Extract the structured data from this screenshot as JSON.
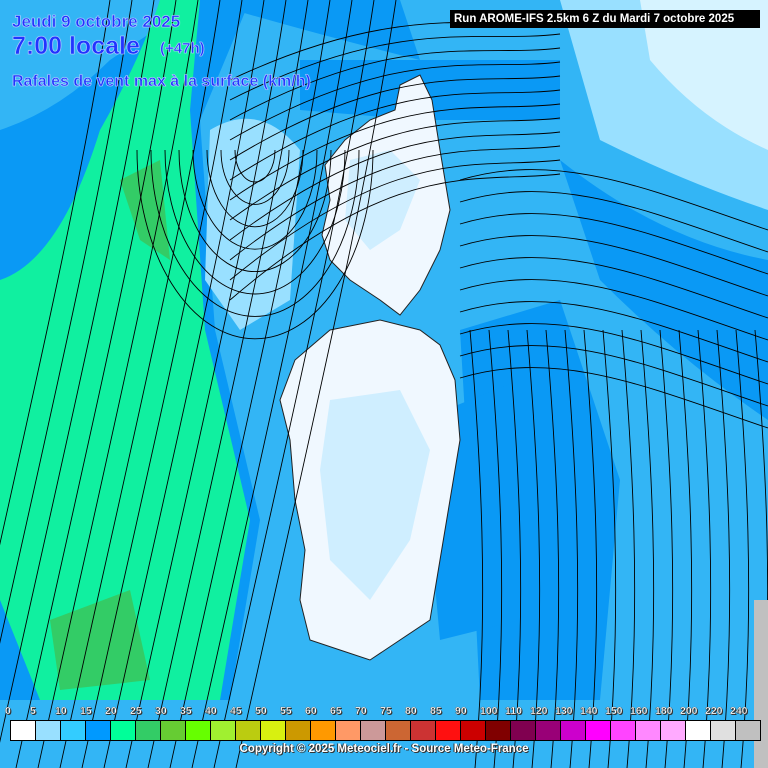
{
  "header": {
    "date": "Jeudi 9 octobre 2025",
    "hour": "7:00 locale",
    "lead_time": "(+47h)",
    "parameter": "Rafales de vent max à la surface (km/h)",
    "run": "Run AROME-IFS 2.5km 6 Z du Mardi 7 octobre 2025"
  },
  "legend": {
    "labels": [
      "0",
      "5",
      "10",
      "15",
      "20",
      "25",
      "30",
      "35",
      "40",
      "45",
      "50",
      "55",
      "60",
      "65",
      "70",
      "75",
      "80",
      "85",
      "90",
      "100",
      "110",
      "120",
      "130",
      "140",
      "150",
      "160",
      "180",
      "200",
      "220",
      "240"
    ],
    "colors": [
      "#ffffff",
      "#99e0ff",
      "#33ccff",
      "#0099ff",
      "#00ff99",
      "#33cc66",
      "#66cc33",
      "#66ff00",
      "#a0f030",
      "#bbcc10",
      "#d8f010",
      "#cc9900",
      "#ff9900",
      "#ff9966",
      "#cc9999",
      "#cc6633",
      "#cc3333",
      "#ff1010",
      "#cc0000",
      "#800000",
      "#800050",
      "#990077",
      "#cc00cc",
      "#ff00ff",
      "#ff44ff",
      "#ff88ff",
      "#ffaaff",
      "#ffffff",
      "#e0e0e0",
      "#c0c0c0"
    ]
  },
  "copyright": "Copyright © 2025 Meteociel.fr - Source Meteo-France"
}
